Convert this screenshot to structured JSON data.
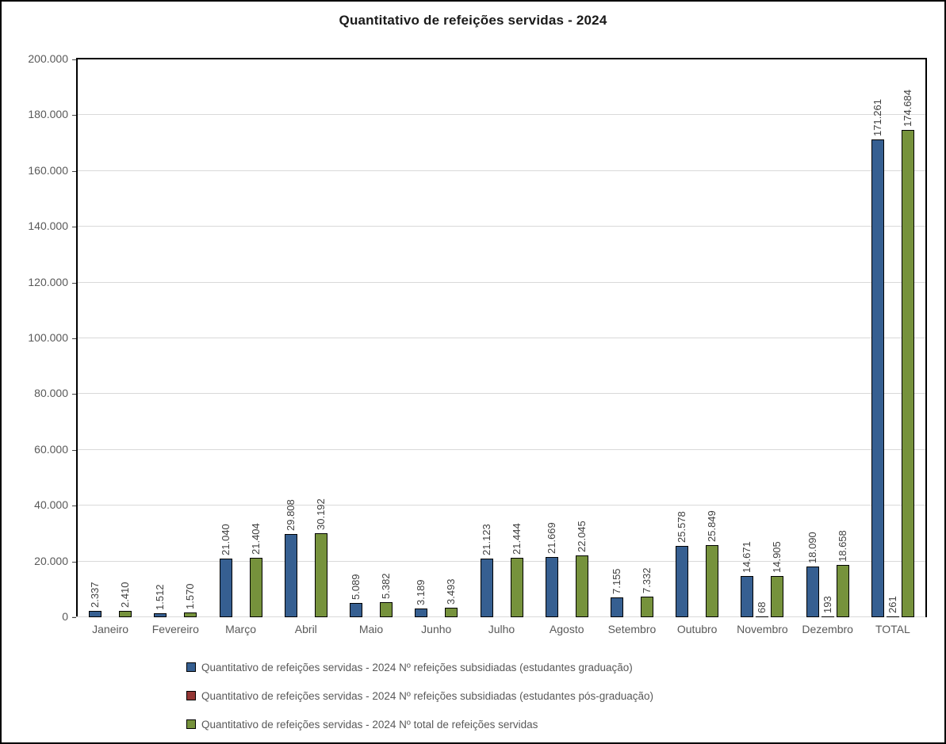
{
  "title": "Quantitativo de refeições servidas - 2024",
  "colors": {
    "series_graduacao": "#365F91",
    "series_pos_graduacao": "#943634",
    "series_total": "#76923C",
    "bar_border": "#000000",
    "gridline": "#D9D9D9",
    "axis_text": "#595959",
    "data_label_text": "#404040"
  },
  "chart_data": {
    "type": "bar",
    "title": "Quantitativo de refeições servidas - 2024",
    "categories": [
      "Janeiro",
      "Fevereiro",
      "Março",
      "Abril",
      "Maio",
      "Junho",
      "Julho",
      "Agosto",
      "Setembro",
      "Outubro",
      "Novembro",
      "Dezembro",
      "TOTAL"
    ],
    "series": [
      {
        "name": "Quantitativo de refeições servidas - 2024 Nº refeições subsidiadas (estudantes graduação)",
        "color": "#365F91",
        "values": [
          2337,
          1512,
          21040,
          29808,
          5089,
          3189,
          21123,
          21669,
          7155,
          25578,
          14671,
          18090,
          171261
        ]
      },
      {
        "name": "Quantitativo de refeições servidas - 2024 Nº refeições subsidiadas (estudantes pós-graduação)",
        "color": "#943634",
        "values": [
          0,
          0,
          0,
          0,
          0,
          0,
          0,
          0,
          0,
          0,
          68,
          193,
          261
        ]
      },
      {
        "name": "Quantitativo de refeições servidas - 2024 Nº total de refeições servidas",
        "color": "#76923C",
        "values": [
          2410,
          1570,
          21404,
          30192,
          5382,
          3493,
          21444,
          22045,
          7332,
          25849,
          14905,
          18658,
          174684
        ]
      }
    ],
    "xlabel": "",
    "ylabel": "",
    "ylim": [
      0,
      200000
    ],
    "ytick_interval": 20000,
    "ytick_labels": [
      "0",
      "20.000",
      "40.000",
      "60.000",
      "80.000",
      "100.000",
      "120.000",
      "140.000",
      "160.000",
      "180.000",
      "200.000"
    ],
    "grid": true,
    "legend_position": "bottom-left",
    "data_labels": "rotated-vertical, thousands separated by dot, zero values unlabeled"
  }
}
